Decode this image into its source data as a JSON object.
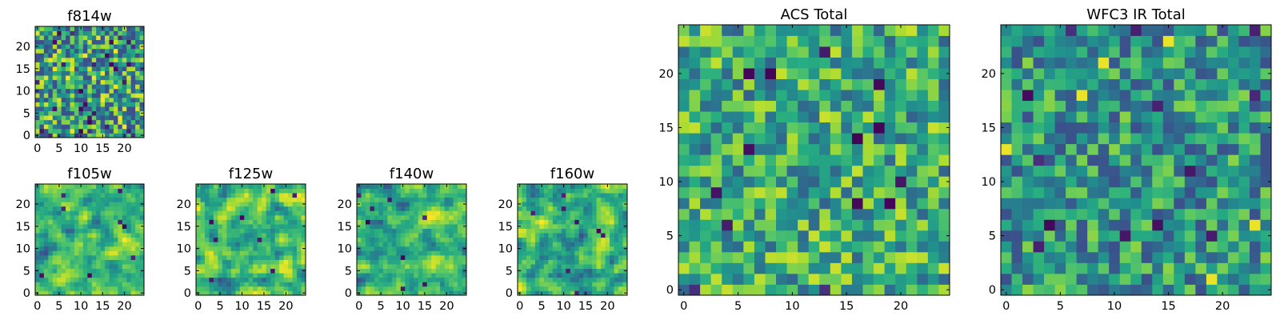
{
  "chart_data": [
    {
      "type": "heatmap",
      "title": "f814w",
      "seed": 814,
      "size": 25,
      "xticks": [
        "0",
        "5",
        "10",
        "15",
        "20"
      ],
      "yticks": [
        "0",
        "5",
        "10",
        "15",
        "20"
      ],
      "colormap": "viridis",
      "style": "speckle"
    },
    {
      "type": "heatmap",
      "title": "f105w",
      "seed": 105,
      "size": 25,
      "xticks": [
        "0",
        "5",
        "10",
        "15",
        "20"
      ],
      "yticks": [
        "0",
        "5",
        "10",
        "15",
        "20"
      ],
      "colormap": "viridis",
      "style": "smooth"
    },
    {
      "type": "heatmap",
      "title": "f125w",
      "seed": 125,
      "size": 25,
      "xticks": [
        "0",
        "5",
        "10",
        "15",
        "20"
      ],
      "yticks": [
        "0",
        "5",
        "10",
        "15",
        "20"
      ],
      "colormap": "viridis",
      "style": "smooth"
    },
    {
      "type": "heatmap",
      "title": "f140w",
      "seed": 140,
      "size": 25,
      "xticks": [
        "0",
        "5",
        "10",
        "15",
        "20"
      ],
      "yticks": [
        "0",
        "5",
        "10",
        "15",
        "20"
      ],
      "colormap": "viridis",
      "style": "smooth"
    },
    {
      "type": "heatmap",
      "title": "f160w",
      "seed": 160,
      "size": 25,
      "xticks": [
        "0",
        "5",
        "10",
        "15",
        "20"
      ],
      "yticks": [
        "0",
        "5",
        "10",
        "15",
        "20"
      ],
      "colormap": "viridis",
      "style": "smooth"
    },
    {
      "type": "heatmap",
      "title": "ACS Total",
      "seed": 2001,
      "size": 25,
      "xticks": [
        "0",
        "5",
        "10",
        "15",
        "20"
      ],
      "yticks": [
        "0",
        "5",
        "10",
        "15",
        "20"
      ],
      "colormap": "viridis",
      "style": "bright"
    },
    {
      "type": "heatmap",
      "title": "WFC3 IR Total",
      "seed": 3003,
      "size": 25,
      "xticks": [
        "0",
        "5",
        "10",
        "15",
        "20"
      ],
      "yticks": [
        "0",
        "5",
        "10",
        "15",
        "20"
      ],
      "colormap": "viridis",
      "style": "mid"
    }
  ]
}
